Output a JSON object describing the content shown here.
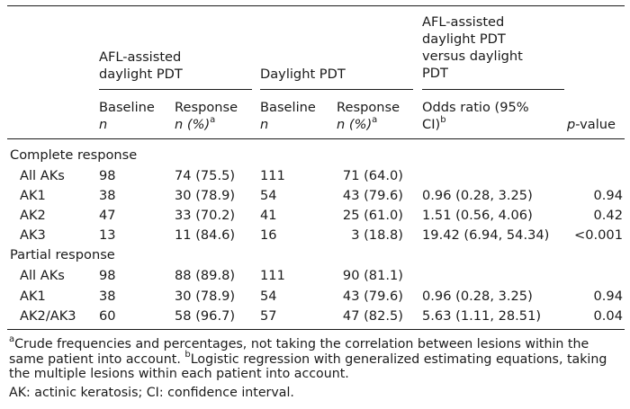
{
  "header": {
    "group_afl": "AFL-assisted daylight PDT",
    "group_afl_line1": "AFL-assisted",
    "group_afl_line2": "daylight PDT",
    "group_dl": "Daylight PDT",
    "group_cmp_line1": "AFL-assisted",
    "group_cmp_line2": "daylight PDT",
    "group_cmp_line3": "versus daylight",
    "group_cmp_line4": "PDT",
    "baseline": "Baseline",
    "n": "n",
    "response": "Response",
    "n_pct": "n (%)",
    "sup_a": "a",
    "odds_line1": "Odds ratio (95%",
    "odds_line2": "CI)",
    "sup_b": "b",
    "pvalue_p": "p",
    "pvalue_rest": "-value"
  },
  "sections": [
    {
      "title": "Complete response",
      "rows": [
        {
          "label": "All AKs",
          "afl_base": "98",
          "afl_resp": "74 (75.5)",
          "dl_base": "111",
          "dl_resp": "71 (64.0)",
          "odds": "",
          "p": ""
        },
        {
          "label": "AK1",
          "afl_base": "38",
          "afl_resp": "30 (78.9)",
          "dl_base": "54",
          "dl_resp": "43 (79.6)",
          "odds": "0.96 (0.28, 3.25)",
          "p": "0.94"
        },
        {
          "label": "AK2",
          "afl_base": "47",
          "afl_resp": "33 (70.2)",
          "dl_base": "41",
          "dl_resp": "25 (61.0)",
          "odds": "1.51 (0.56, 4.06)",
          "p": "0.42"
        },
        {
          "label": "AK3",
          "afl_base": "13",
          "afl_resp": "11 (84.6)",
          "dl_base": "16",
          "dl_resp": "3 (18.8)",
          "odds": "19.42 (6.94, 54.34)",
          "p": "<0.001"
        }
      ]
    },
    {
      "title": "Partial response",
      "rows": [
        {
          "label": "All AKs",
          "afl_base": "98",
          "afl_resp": "88 (89.8)",
          "dl_base": "111",
          "dl_resp": "90 (81.1)",
          "odds": "",
          "p": ""
        },
        {
          "label": "AK1",
          "afl_base": "38",
          "afl_resp": "30 (78.9)",
          "dl_base": "54",
          "dl_resp": "43 (79.6)",
          "odds": "0.96 (0.28, 3.25)",
          "p": "0.94"
        },
        {
          "label": "AK2/AK3",
          "afl_base": "60",
          "afl_resp": "58 (96.7)",
          "dl_base": "57",
          "dl_resp": "47 (82.5)",
          "odds": "5.63 (1.11, 28.51)",
          "p": "0.04"
        }
      ]
    }
  ],
  "footnotes": {
    "note_a_mark": "a",
    "note_a": "Crude frequencies and percentages, not taking the correlation between lesions within the same patient into account.",
    "note_b_mark": "b",
    "note_b": "Logistic regression with generalized estimating equations, taking the multiple lesions within each patient into account.",
    "abbrev": "AK: actinic keratosis; CI: confidence interval."
  }
}
